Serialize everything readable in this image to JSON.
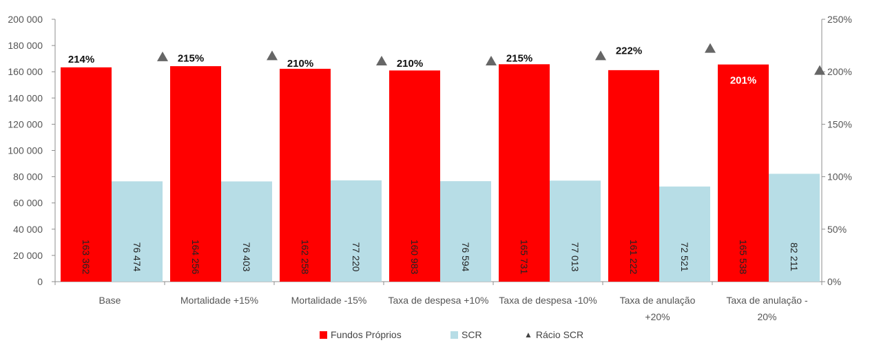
{
  "chart_data": {
    "type": "bar",
    "categories": [
      [
        "Base"
      ],
      [
        "Mortalidade +15%"
      ],
      [
        "Mortalidade -15%"
      ],
      [
        "Taxa de despesa +10%"
      ],
      [
        "Taxa de despesa -10%"
      ],
      [
        "Taxa de anulação",
        "+20%"
      ],
      [
        "Taxa de anulação -",
        "20%"
      ]
    ],
    "series": [
      {
        "name": "Fundos Próprios",
        "color": "#ff0000",
        "values": [
          163362,
          164256,
          162258,
          160983,
          165731,
          161222,
          165538
        ],
        "labels": [
          "163 362",
          "164 256",
          "162 258",
          "160 983",
          "165 731",
          "161 222",
          "165 538"
        ]
      },
      {
        "name": "SCR",
        "color": "#b7dde6",
        "values": [
          76474,
          76403,
          77220,
          76594,
          77013,
          72521,
          82211
        ],
        "labels": [
          "76 474",
          "76 403",
          "77 220",
          "76 594",
          "77 013",
          "72 521",
          "82 211"
        ]
      }
    ],
    "ratio_series": {
      "name": "Rácio SCR",
      "color": "#666666",
      "values": [
        214,
        215,
        210,
        210,
        215,
        222,
        201
      ],
      "labels": [
        "214%",
        "215%",
        "210%",
        "210%",
        "215%",
        "222%",
        "201%"
      ]
    },
    "y_left": {
      "ylim": [
        0,
        200000
      ],
      "ticks": [
        "0",
        "20 000",
        "40 000",
        "60 000",
        "80 000",
        "100 000",
        "120 000",
        "140 000",
        "160 000",
        "180 000",
        "200 000"
      ]
    },
    "y_right": {
      "ylim": [
        0,
        250
      ],
      "ticks": [
        "0%",
        "50%",
        "100%",
        "150%",
        "200%",
        "250%"
      ]
    },
    "grid": false,
    "legend_position": "bottom"
  },
  "legend": {
    "fundos": "Fundos Próprios",
    "scr": "SCR",
    "ratio": "Rácio SCR",
    "ratio_marker": "▲"
  }
}
